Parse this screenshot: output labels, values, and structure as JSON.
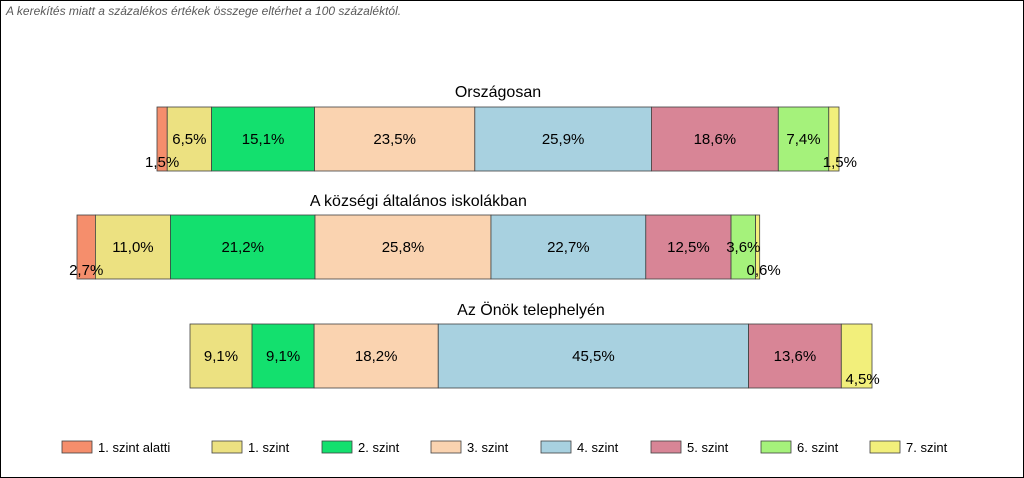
{
  "note": "A kerekítés miatt a  százalékos értékek összege eltérhet a 100 százaléktól.",
  "chart_data": {
    "type": "bar",
    "orientation": "horizontal",
    "stacked": true,
    "unit": "%",
    "legend_position": "bottom",
    "grid": false,
    "levels": [
      {
        "name": "1. szint alatti",
        "color": "#F58E6C"
      },
      {
        "name": "1. szint",
        "color": "#ECE181"
      },
      {
        "name": "2. szint",
        "color": "#13E06E"
      },
      {
        "name": "3. szint",
        "color": "#FAD3B0"
      },
      {
        "name": "4. szint",
        "color": "#A8D1E0"
      },
      {
        "name": "5. szint",
        "color": "#D88596"
      },
      {
        "name": "6. szint",
        "color": "#A5F27B"
      },
      {
        "name": "7. szint",
        "color": "#F2EF7B"
      }
    ],
    "bars": [
      {
        "title": "Országosan",
        "values": [
          1.5,
          6.5,
          15.1,
          23.5,
          25.9,
          18.6,
          7.4,
          1.5
        ],
        "labels": [
          "1,5%",
          "6,5%",
          "15,1%",
          "23,5%",
          "25,9%",
          "18,6%",
          "7,4%",
          "1,5%"
        ]
      },
      {
        "title": "A községi általános iskolákban",
        "values": [
          2.7,
          11.0,
          21.2,
          25.8,
          22.7,
          12.5,
          3.6,
          0.6
        ],
        "labels": [
          "2,7%",
          "11,0%",
          "21,2%",
          "25,8%",
          "22,7%",
          "12,5%",
          "3,6%",
          "0,6%"
        ]
      },
      {
        "title": "Az Önök telephelyén",
        "values": [
          0,
          9.1,
          9.1,
          18.2,
          45.5,
          13.6,
          0,
          4.5
        ],
        "labels": [
          "",
          "9,1%",
          "9,1%",
          "18,2%",
          "45,5%",
          "13,6%",
          "",
          "4,5%"
        ]
      }
    ]
  }
}
